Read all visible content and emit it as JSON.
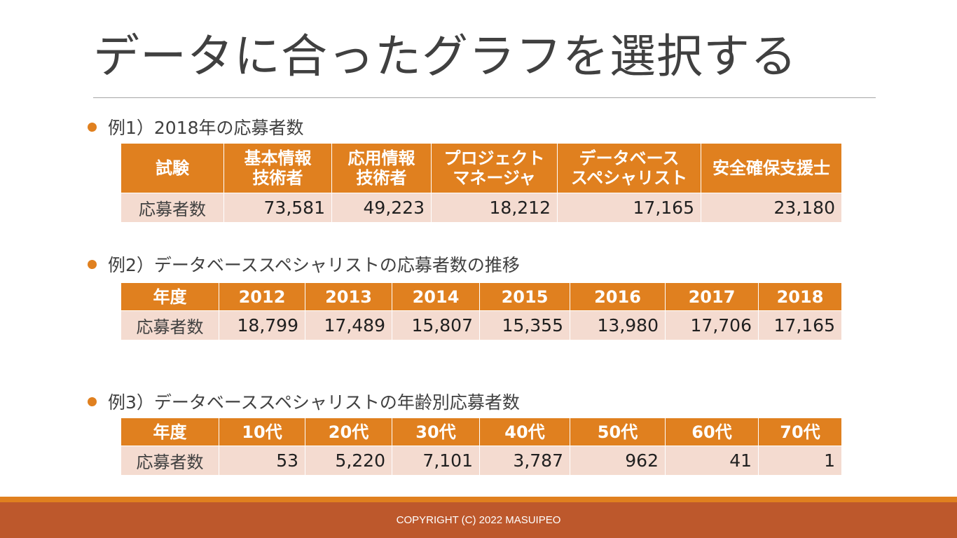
{
  "slide": {
    "title": "データに合ったグラフを選択する",
    "footer": "COPYRIGHT (C) 2022 MASUIPEO"
  },
  "colors": {
    "accent": "#e0801f",
    "footer": "#bd582c",
    "row_fill": "#f4dbd0"
  },
  "example1": {
    "heading": "例1）2018年の応募者数",
    "headers": [
      "試験",
      "基本情報\n技術者",
      "応用情報\n技術者",
      "プロジェクト\nマネージャ",
      "データベース\nスペシャリスト",
      "安全確保支援士"
    ],
    "row_label": "応募者数",
    "values": [
      "73,581",
      "49,223",
      "18,212",
      "17,165",
      "23,180"
    ]
  },
  "example2": {
    "heading": "例2）データベーススペシャリストの応募者数の推移",
    "headers": [
      "年度",
      "2012",
      "2013",
      "2014",
      "2015",
      "2016",
      "2017",
      "2018"
    ],
    "row_label": "応募者数",
    "values": [
      "18,799",
      "17,489",
      "15,807",
      "15,355",
      "13,980",
      "17,706",
      "17,165"
    ]
  },
  "example3": {
    "heading": "例3）データベーススペシャリストの年齢別応募者数",
    "headers": [
      "年度",
      "10代",
      "20代",
      "30代",
      "40代",
      "50代",
      "60代",
      "70代"
    ],
    "row_label": "応募者数",
    "values": [
      "53",
      "5,220",
      "7,101",
      "3,787",
      "962",
      "41",
      "1"
    ]
  }
}
